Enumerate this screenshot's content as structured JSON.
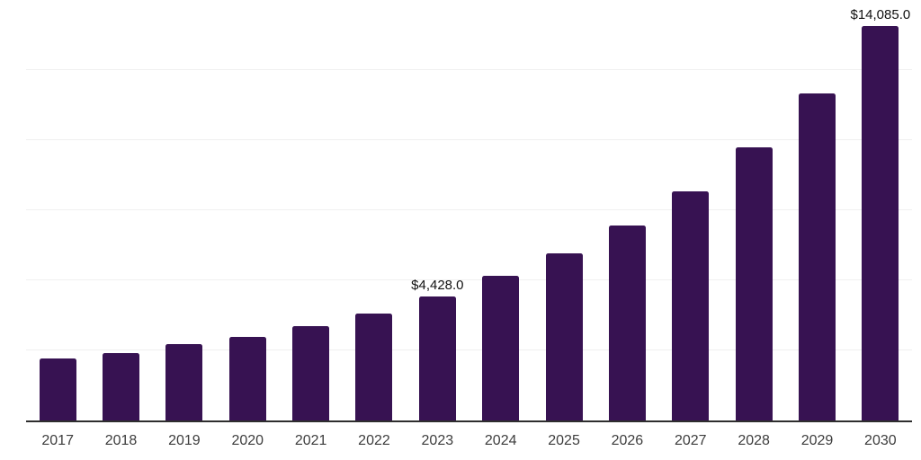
{
  "chart_data": {
    "type": "bar",
    "title": "",
    "xlabel": "",
    "ylabel": "",
    "categories": [
      "2017",
      "2018",
      "2019",
      "2020",
      "2021",
      "2022",
      "2023",
      "2024",
      "2025",
      "2026",
      "2027",
      "2028",
      "2029",
      "2030"
    ],
    "values": [
      2210,
      2410,
      2720,
      2970,
      3380,
      3820,
      4428.0,
      5170,
      5970,
      6970,
      8190,
      9740,
      11680,
      14085.0
    ],
    "value_labels": [
      "",
      "",
      "",
      "",
      "",
      "",
      "$4,428.0",
      "",
      "",
      "",
      "",
      "",
      "",
      "$14,085.0"
    ],
    "ylim": [
      0,
      15000
    ],
    "gridline_step": 2500,
    "grid": true,
    "legend_position": "none"
  },
  "colors": {
    "bar": "#371252",
    "axis": "#2e2e2e",
    "gridline": "#f0f0f0",
    "value_label": "#111111",
    "tick_label": "#3d3d3d",
    "background": "#ffffff"
  }
}
